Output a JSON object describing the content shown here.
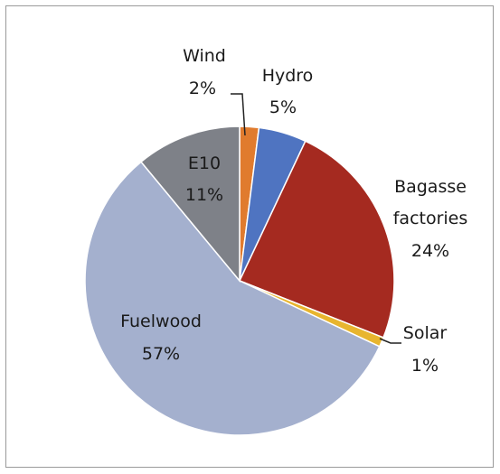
{
  "chart_data": {
    "type": "pie",
    "start_angle_deg": 0,
    "direction": "clockwise",
    "slices": [
      {
        "label": "Wind",
        "value": 2,
        "value_label": "2%",
        "color": "#E07B2E"
      },
      {
        "label": "Hydro",
        "value": 5,
        "value_label": "5%",
        "color": "#4F74C1"
      },
      {
        "label": "Bagasse factories",
        "label_lines": [
          "Bagasse",
          "factories"
        ],
        "value": 24,
        "value_label": "24%",
        "color": "#A52A20"
      },
      {
        "label": "Solar",
        "value": 1,
        "value_label": "1%",
        "color": "#E8B52E"
      },
      {
        "label": "Fuelwood",
        "value": 57,
        "value_label": "57%",
        "color": "#A4B0CE"
      },
      {
        "label": "E10",
        "value": 11,
        "value_label": "11%",
        "color": "#7E8188"
      }
    ]
  }
}
